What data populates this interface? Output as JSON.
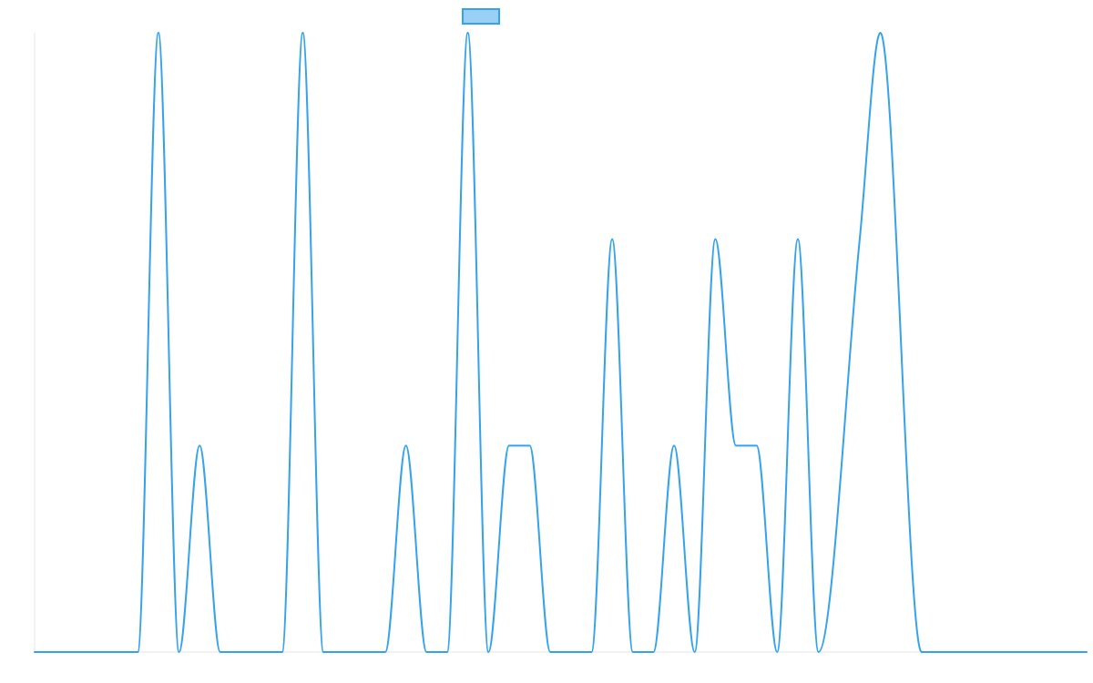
{
  "chart_data": {
    "type": "line",
    "title": "",
    "xlabel": "",
    "ylabel": "",
    "xlim": [
      0,
      102
    ],
    "ylim": [
      0,
      3
    ],
    "grid": false,
    "legend_placement": "top-center",
    "colors": {
      "series_line": "#36a2eb",
      "series_fill": "#9ad0f5",
      "axis": "#e6e6e6"
    },
    "series": [
      {
        "points": [
          [
            0,
            0
          ],
          [
            10,
            0
          ],
          [
            12,
            3
          ],
          [
            14,
            0
          ],
          [
            16,
            1
          ],
          [
            18,
            0
          ],
          [
            24,
            0
          ],
          [
            26,
            3
          ],
          [
            28,
            0
          ],
          [
            34,
            0
          ],
          [
            36,
            1
          ],
          [
            38,
            0
          ],
          [
            40,
            0
          ],
          [
            42,
            3
          ],
          [
            44,
            0
          ],
          [
            46,
            1
          ],
          [
            48,
            1
          ],
          [
            50,
            0
          ],
          [
            54,
            0
          ],
          [
            56,
            2
          ],
          [
            58,
            0
          ],
          [
            60,
            0
          ],
          [
            62,
            1
          ],
          [
            64,
            0
          ],
          [
            66,
            2
          ],
          [
            68,
            1
          ],
          [
            70,
            1
          ],
          [
            72,
            0
          ],
          [
            74,
            2
          ],
          [
            76,
            0
          ],
          [
            80,
            2
          ],
          [
            82,
            3
          ],
          [
            86,
            0
          ],
          [
            102,
            0
          ]
        ]
      }
    ]
  }
}
